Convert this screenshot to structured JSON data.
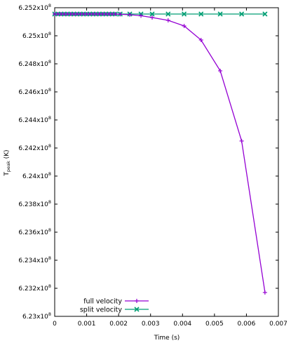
{
  "chart_data": {
    "type": "line",
    "xlabel": "Time (s)",
    "ylabel": {
      "base": "T",
      "subscript": "peak",
      "unit": " (K)"
    },
    "xlim": [
      0,
      0.007
    ],
    "ylim": [
      623000000,
      625200000
    ],
    "grid": false,
    "legend_position": "bottom-left",
    "x_ticks": [
      {
        "value": 0,
        "label": "0"
      },
      {
        "value": 0.001,
        "label": "0.001"
      },
      {
        "value": 0.002,
        "label": "0.002"
      },
      {
        "value": 0.003,
        "label": "0.003"
      },
      {
        "value": 0.004,
        "label": "0.004"
      },
      {
        "value": 0.005,
        "label": "0.005"
      },
      {
        "value": 0.006,
        "label": "0.006"
      },
      {
        "value": 0.007,
        "label": "0.007"
      }
    ],
    "y_ticks": [
      {
        "value": 623000000,
        "mantissa": "6.23x10",
        "exponent": "8"
      },
      {
        "value": 623200000,
        "mantissa": "6.232x10",
        "exponent": "8"
      },
      {
        "value": 623400000,
        "mantissa": "6.234x10",
        "exponent": "8"
      },
      {
        "value": 623600000,
        "mantissa": "6.236x10",
        "exponent": "8"
      },
      {
        "value": 623800000,
        "mantissa": "6.238x10",
        "exponent": "8"
      },
      {
        "value": 624000000,
        "mantissa": "6.24x10",
        "exponent": "8"
      },
      {
        "value": 624200000,
        "mantissa": "6.242x10",
        "exponent": "8"
      },
      {
        "value": 624400000,
        "mantissa": "6.244x10",
        "exponent": "8"
      },
      {
        "value": 624600000,
        "mantissa": "6.246x10",
        "exponent": "8"
      },
      {
        "value": 624800000,
        "mantissa": "6.248x10",
        "exponent": "8"
      },
      {
        "value": 625000000,
        "mantissa": "6.25x10",
        "exponent": "8"
      },
      {
        "value": 625200000,
        "mantissa": "6.252x10",
        "exponent": "8"
      }
    ],
    "series": [
      {
        "name": "full velocity",
        "color": "#9400d3",
        "marker": "plus",
        "x": [
          0.0,
          0.0001,
          0.0002,
          0.0003,
          0.0004,
          0.0005,
          0.0006,
          0.0007,
          0.0008,
          0.0009,
          0.001,
          0.0011,
          0.0012,
          0.0013,
          0.0014,
          0.0015,
          0.0016,
          0.0017,
          0.0018,
          0.0019,
          0.00205,
          0.00235,
          0.0027,
          0.00305,
          0.00355,
          0.00405,
          0.00458,
          0.00518,
          0.00585,
          0.00658
        ],
        "y": [
          625155000,
          625155000,
          625155000,
          625155000,
          625155000,
          625155000,
          625155000,
          625155000,
          625155000,
          625155000,
          625155000,
          625155000,
          625155000,
          625155000,
          625155000,
          625155000,
          625155000,
          625155000,
          625155000,
          625155000,
          625153000,
          625150000,
          625143000,
          625130000,
          625110000,
          625070000,
          624970000,
          624750000,
          624250000,
          623170000
        ]
      },
      {
        "name": "split velocity",
        "color": "#009e73",
        "marker": "cross",
        "x": [
          0.0,
          0.0001,
          0.0002,
          0.0003,
          0.0004,
          0.0005,
          0.0006,
          0.0007,
          0.0008,
          0.0009,
          0.001,
          0.0011,
          0.0012,
          0.0013,
          0.0014,
          0.0015,
          0.0016,
          0.0017,
          0.0018,
          0.0019,
          0.00205,
          0.00235,
          0.0027,
          0.00305,
          0.00355,
          0.00405,
          0.00458,
          0.00518,
          0.00585,
          0.00658
        ],
        "y": [
          625155000,
          625155000,
          625155000,
          625155000,
          625155000,
          625155000,
          625155000,
          625155000,
          625155000,
          625155000,
          625155000,
          625155000,
          625155000,
          625155000,
          625155000,
          625155000,
          625155000,
          625155000,
          625155000,
          625155000,
          625155000,
          625155000,
          625155000,
          625155000,
          625155000,
          625155000,
          625155000,
          625155000,
          625155000,
          625155000
        ]
      }
    ]
  }
}
